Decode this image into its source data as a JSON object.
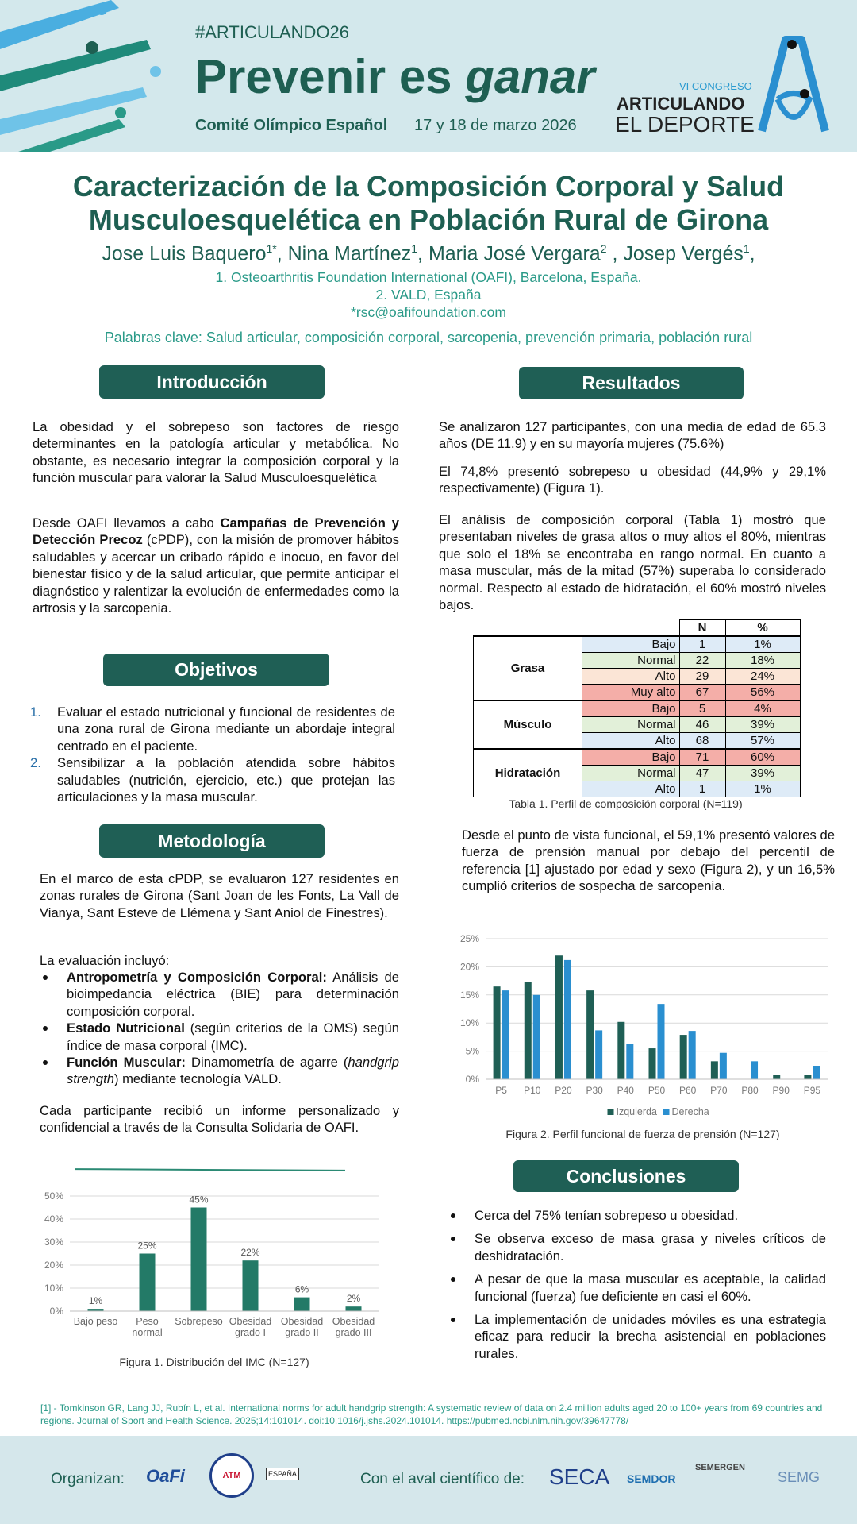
{
  "header": {
    "hashtag": "#ARTICULANDO26",
    "title_plain": "Prevenir es",
    "title_italic": "ganar",
    "organizer": "Comité Olímpico Español",
    "dates": "17 y 18 de marzo 2026",
    "congress": {
      "edition": "VI CONGRESO",
      "line1": "ARTICULANDO",
      "line2": "EL DEPORTE"
    }
  },
  "poster": {
    "title_lines": [
      "Caracterización de la Composición Corporal y Salud",
      "Musculoesquelética en Población Rural de Girona"
    ],
    "authors": [
      {
        "name": "Jose Luis Baquero",
        "sup": "1*"
      },
      {
        "name": ", Nina Martínez",
        "sup": "1"
      },
      {
        "name": ", Maria José Vergara",
        "sup": "2"
      },
      {
        "name": " , Josep Vergés",
        "sup": "1"
      }
    ],
    "authors_end": ",",
    "affiliations": [
      "1. Osteoarthritis Foundation International (OAFI), Barcelona, España.",
      "2. VALD, España"
    ],
    "email": "*rsc@oafifoundation.com",
    "keywords": "Palabras clave: Salud articular, composición corporal, sarcopenia, prevención primaria, población rural"
  },
  "introduction": {
    "heading": "Introducción",
    "p1": [
      {
        "text": "La obesidad y el sobrepeso son factores de riesgo determinantes en la patología articular y metabólica. No obstante, es necesario integrar la composición corporal y la función muscular para valorar la Salud Musculoesquelética"
      }
    ],
    "p2": [
      {
        "text": "Desde OAFI llevamos a cabo "
      },
      {
        "text": "Campañas de Prevención y Detección Precoz",
        "bold": true
      },
      {
        "text": " (cPDP), con la misión de promover hábitos saludables y acercar un cribado rápido e inocuo, en favor del bienestar físico y de la salud articular, que permite anticipar el diagnóstico y ralentizar la evolución de enfermedades como la artrosis y la sarcopenia."
      }
    ]
  },
  "objectives": {
    "heading": "Objetivos",
    "items": [
      {
        "marker": "1.",
        "text": "Evaluar el estado nutricional y funcional de residentes de una zona rural de Girona mediante un abordaje  integral centrado en el paciente."
      },
      {
        "marker": "2.",
        "text": "Sensibilizar a la población atendida sobre hábitos saludables (nutrición, ejercicio, etc.) que protejan las articulaciones y la masa muscular."
      }
    ]
  },
  "methodology": {
    "heading": "Metodología",
    "p1": "En el marco de esta cPDP, se evaluaron 127 residentes en zonas rurales de Girona (Sant Joan de les Fonts, La Vall de Vianya, Sant Esteve de Llémena y Sant Aniol de Finestres).",
    "list_intro": "La evaluación incluyó:",
    "bullets": [
      [
        {
          "text": "Antropometría y Composición Corporal:",
          "bold": true
        },
        {
          "text": " Análisis de bioimpedancia eléctrica (BIE) para determinación composición corporal."
        }
      ],
      [
        {
          "text": "Estado Nutricional",
          "bold": true
        },
        {
          "text": " (según criterios de la OMS) según índice de masa corporal (IMC)."
        }
      ],
      [
        {
          "text": "Función Muscular:",
          "bold": true
        },
        {
          "text": " Dinamometría de agarre ("
        },
        {
          "text": "handgrip strength",
          "italic": true
        },
        {
          "text": ") mediante tecnología VALD."
        }
      ]
    ],
    "closing": "Cada participante recibió un informe personalizado y confidencial a través de la Consulta Solidaria de OAFI."
  },
  "results": {
    "heading": "Resultados",
    "p1": "Se analizaron 127 participantes, con una media de edad de 65.3 años (DE 11.9) y en su mayoría mujeres (75.6%)",
    "p2": "El 74,8% presentó sobrepeso u obesidad (44,9% y 29,1% respectivamente) (Figura 1).",
    "p3": "El análisis de composición corporal (Tabla 1)  mostró que presentaban niveles de grasa altos o muy altos el 80%, mientras que solo el 18% se encontraba en rango normal. En cuanto a masa muscular, más de la mitad (57%) superaba lo considerado normal. Respecto al estado de hidratación, el 60% mostró niveles bajos.",
    "p4": "Desde el punto de vista funcional, el 59,1% presentó valores de fuerza de prensión manual por debajo del percentil de referencia [1] ajustado por edad y sexo (Figura 2), y un 16,5% cumplió criterios de sospecha de sarcopenia."
  },
  "table": {
    "headers": [
      "N",
      "%"
    ],
    "groups": [
      {
        "label": "Grasa",
        "rows": [
          {
            "label": "Bajo",
            "n": 1,
            "pct": "1%",
            "color": "#deebf7"
          },
          {
            "label": "Normal",
            "n": 22,
            "pct": "18%",
            "color": "#e2f0d9"
          },
          {
            "label": "Alto",
            "n": 29,
            "pct": "24%",
            "color": "#fbe5d6"
          },
          {
            "label": "Muy alto",
            "n": 67,
            "pct": "56%",
            "color": "#f4aea8"
          }
        ]
      },
      {
        "label": "Músculo",
        "rows": [
          {
            "label": "Bajo",
            "n": 5,
            "pct": "4%",
            "color": "#f4aea8"
          },
          {
            "label": "Normal",
            "n": 46,
            "pct": "39%",
            "color": "#e2f0d9"
          },
          {
            "label": "Alto",
            "n": 68,
            "pct": "57%",
            "color": "#deebf7"
          }
        ]
      },
      {
        "label": "Hidratación",
        "rows": [
          {
            "label": "Bajo",
            "n": 71,
            "pct": "60%",
            "color": "#f4aea8"
          },
          {
            "label": "Normal",
            "n": 47,
            "pct": "39%",
            "color": "#e2f0d9"
          },
          {
            "label": "Alto",
            "n": 1,
            "pct": "1%",
            "color": "#deebf7"
          }
        ]
      }
    ],
    "caption": "Tabla 1. Perfil de composición corporal (N=119)"
  },
  "chart_data": [
    {
      "type": "bar",
      "caption": "Figura 1. Distribución del IMC (N=127)",
      "categories": [
        "Bajo peso",
        "Peso normal",
        "Sobrepeso",
        "Obesidad grado I",
        "Obesidad grado II",
        "Obesidad grado III"
      ],
      "values": [
        1,
        25,
        45,
        22,
        6,
        2
      ],
      "value_labels": [
        "1%",
        "25%",
        "45%",
        "22%",
        "6%",
        "2%"
      ],
      "color": "#237a67",
      "ylim": [
        0,
        50
      ],
      "yticks": [
        {
          "value": 0,
          "label": "0%"
        },
        {
          "value": 10,
          "label": "10%"
        },
        {
          "value": 20,
          "label": "20%"
        },
        {
          "value": 30,
          "label": "30%"
        },
        {
          "value": 40,
          "label": "40%"
        },
        {
          "value": 50,
          "label": "50%"
        }
      ],
      "grid": true
    },
    {
      "type": "grouped-bar",
      "caption": "Figura 2. Perfil funcional de fuerza de prensión (N=127)",
      "categories": [
        "P5",
        "P10",
        "P20",
        "P30",
        "P40",
        "P50",
        "P60",
        "P70",
        "P80",
        "P90",
        "P95"
      ],
      "series": [
        {
          "name": "Izquierda",
          "color": "#1f5f55",
          "values": [
            16.5,
            17.3,
            22,
            15.8,
            10.2,
            5.5,
            7.9,
            3.2,
            0,
            0.8,
            0.8
          ]
        },
        {
          "name": "Derecha",
          "color": "#2a8fd0",
          "values": [
            15.8,
            15,
            21.2,
            8.7,
            6.3,
            13.4,
            8.6,
            4.7,
            3.2,
            0,
            2.4
          ]
        }
      ],
      "ylim": [
        0,
        25
      ],
      "yticks": [
        {
          "value": 0,
          "label": "0%"
        },
        {
          "value": 5,
          "label": "5%"
        },
        {
          "value": 10,
          "label": "10%"
        },
        {
          "value": 15,
          "label": "15%"
        },
        {
          "value": 20,
          "label": "20%"
        },
        {
          "value": 25,
          "label": "25%"
        }
      ],
      "grid": true,
      "legend": "bottom"
    }
  ],
  "conclusions": {
    "heading": "Conclusiones",
    "items": [
      "Cerca del 75% tenían sobrepeso u obesidad.",
      "Se observa exceso de masa grasa y niveles críticos de deshidratación.",
      "A pesar de que la masa muscular es aceptable, la calidad funcional (fuerza) fue deficiente en casi el 60%.",
      "La implementación de unidades móviles es una estrategia eficaz para reducir la brecha asistencial en poblaciones rurales."
    ]
  },
  "reference": "[1] - Tomkinson GR, Lang JJ, Rubín L, et al. International norms for adult handgrip strength: A systematic review of data on 2.4 million adults aged 20 to 100+ years from 69 countries and regions. Journal of Sport and Health Science. 2025;14:101014. doi:10.1016/j.jshs.2024.101014. https://pubmed.ncbi.nlm.nih.gov/39647778/",
  "footer": {
    "organizers_label": "Organizan:",
    "organizers": [
      "OaFi",
      "ATM",
      "ESPAÑA"
    ],
    "endorsement_label": "Con el aval científico de:",
    "endorsers": [
      "SECA",
      "SEMDOR",
      "SEMERGEN",
      "SEMG"
    ]
  }
}
